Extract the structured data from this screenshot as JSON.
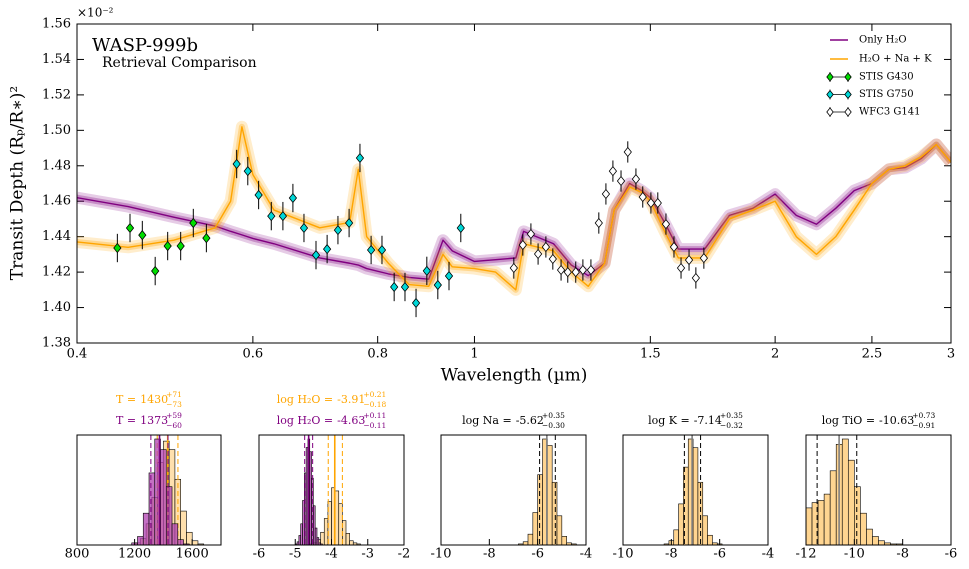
{
  "chart_data": [
    {
      "type": "line",
      "title": "WASP-999b",
      "subtitle": "Retrieval Comparison",
      "xlabel": "Wavelength (µm)",
      "ylabel": "Transit Depth (Rₚ/R∗)²",
      "y_multiplier": "×10⁻²",
      "xscale": "log",
      "xlim": [
        0.4,
        3
      ],
      "ylim": [
        1.38,
        1.56
      ],
      "xticks": [
        0.4,
        0.6,
        0.8,
        1,
        1.5,
        2,
        2.5,
        3
      ],
      "yticks": [
        1.38,
        {
          "value": 1.4,
          "label": "1.40"
        },
        1.42,
        1.44,
        1.46,
        1.48,
        {
          "value": 1.5,
          "label": "1.50"
        },
        1.52,
        1.54,
        1.56
      ],
      "legend": "upper right",
      "x": [
        0.4,
        0.45,
        0.5,
        0.55,
        0.57,
        0.585,
        0.6,
        0.63,
        0.7,
        0.75,
        0.765,
        0.78,
        0.82,
        0.86,
        0.9,
        0.93,
        0.95,
        1.0,
        1.05,
        1.1,
        1.12,
        1.2,
        1.25,
        1.3,
        1.35,
        1.38,
        1.43,
        1.47,
        1.5,
        1.55,
        1.6,
        1.7,
        1.8,
        1.9,
        2.0,
        2.1,
        2.2,
        2.3,
        2.4,
        2.5,
        2.6,
        2.7,
        2.8,
        2.9,
        3.0
      ],
      "series": [
        {
          "name": "Only H₂O",
          "color": "#800080",
          "values": [
            1.462,
            1.457,
            1.451,
            1.446,
            1.443,
            1.441,
            1.439,
            1.436,
            1.428,
            1.425,
            1.424,
            1.422,
            1.419,
            1.417,
            1.416,
            1.438,
            1.432,
            1.426,
            1.427,
            1.428,
            1.443,
            1.436,
            1.424,
            1.418,
            1.425,
            1.455,
            1.47,
            1.466,
            1.462,
            1.448,
            1.433,
            1.433,
            1.452,
            1.456,
            1.464,
            1.452,
            1.447,
            1.456,
            1.466,
            1.47,
            1.478,
            1.479,
            1.484,
            1.492,
            1.482
          ]
        },
        {
          "name": "H₂O + Na + K",
          "color": "#ffa500",
          "values": [
            1.437,
            1.434,
            1.438,
            1.445,
            1.46,
            1.502,
            1.475,
            1.455,
            1.445,
            1.448,
            1.478,
            1.44,
            1.425,
            1.413,
            1.412,
            1.43,
            1.423,
            1.422,
            1.42,
            1.41,
            1.436,
            1.432,
            1.42,
            1.412,
            1.425,
            1.455,
            1.468,
            1.465,
            1.46,
            1.443,
            1.428,
            1.428,
            1.45,
            1.455,
            1.46,
            1.44,
            1.43,
            1.44,
            1.455,
            1.47,
            1.478,
            1.48,
            1.485,
            1.492,
            1.482
          ]
        }
      ],
      "observations": [
        {
          "name": "STIS G430",
          "color": "#00dd00",
          "x": [
            0.439,
            0.452,
            0.465,
            0.479,
            0.493,
            0.508,
            0.523,
            0.539
          ],
          "values": [
            1.4336,
            1.4449,
            1.4409,
            1.4206,
            1.4347,
            1.4347,
            1.4477,
            1.4392
          ],
          "errors": [
            0.008,
            0.008,
            0.008,
            0.008,
            0.008,
            0.008,
            0.008,
            0.008
          ]
        },
        {
          "name": "STIS G750",
          "color": "#00d8d8",
          "x": [
            0.578,
            0.593,
            0.608,
            0.626,
            0.643,
            0.658,
            0.675,
            0.694,
            0.712,
            0.73,
            0.749,
            0.768,
            0.788,
            0.808,
            0.831,
            0.852,
            0.874,
            0.896,
            0.919,
            0.943,
            0.969
          ],
          "values": [
            1.481,
            1.477,
            1.4635,
            1.4516,
            1.4516,
            1.4618,
            1.4449,
            1.4296,
            1.433,
            1.4437,
            1.4477,
            1.4844,
            1.4325,
            1.4325,
            1.4116,
            1.4116,
            1.4026,
            1.4207,
            1.4127,
            1.4178,
            1.4449
          ],
          "errors": [
            0.008,
            0.008,
            0.008,
            0.008,
            0.008,
            0.008,
            0.008,
            0.008,
            0.008,
            0.008,
            0.008,
            0.008,
            0.008,
            0.008,
            0.008,
            0.008,
            0.008,
            0.008,
            0.008,
            0.008,
            0.008
          ]
        },
        {
          "name": "WFC3 G141",
          "color": "#ffffff",
          "x": [
            1.095,
            1.118,
            1.139,
            1.158,
            1.179,
            1.198,
            1.221,
            1.24,
            1.263,
            1.284,
            1.308,
            1.332,
            1.354,
            1.376,
            1.402,
            1.424,
            1.451,
            1.474,
            1.502,
            1.526,
            1.555,
            1.584,
            1.61,
            1.64,
            1.666,
            1.697
          ],
          "values": [
            1.4223,
            1.4353,
            1.4415,
            1.4302,
            1.4342,
            1.4274,
            1.4212,
            1.42,
            1.42,
            1.4212,
            1.4212,
            1.4477,
            1.4641,
            1.477,
            1.4714,
            1.4878,
            1.4725,
            1.4624,
            1.459,
            1.459,
            1.4471,
            1.4342,
            1.4223,
            1.4268,
            1.4167,
            1.4279
          ],
          "errors": [
            0.006,
            0.006,
            0.006,
            0.006,
            0.006,
            0.006,
            0.006,
            0.006,
            0.006,
            0.006,
            0.006,
            0.006,
            0.006,
            0.006,
            0.006,
            0.006,
            0.006,
            0.006,
            0.006,
            0.006,
            0.006,
            0.006,
            0.006,
            0.006,
            0.006,
            0.006
          ]
        }
      ]
    },
    {
      "type": "histogram",
      "xlim": [
        800,
        1800
      ],
      "xticks": [
        800,
        1200,
        1600
      ],
      "series": [
        {
          "label": "T =",
          "color": "#ffa500",
          "median_color": "#ffa500",
          "fill": "#ffd591",
          "median": 1430,
          "upper_error": 71,
          "upper_error_label": "+71",
          "lower_error": -73,
          "lower_error_label": "−73",
          "bins": [
            1200,
            1240,
            1280,
            1320,
            1360,
            1400,
            1440,
            1480,
            1520,
            1560,
            1600,
            1640,
            1680
          ],
          "counts": [
            2,
            6,
            20,
            45,
            78,
            98,
            90,
            62,
            32,
            12,
            4,
            1
          ]
        },
        {
          "label": "T =",
          "color": "#800080",
          "median_color": "#800080",
          "fill": "#b040b0",
          "median": 1373,
          "upper_error": 59,
          "upper_error_label": "+59",
          "lower_error": -60,
          "lower_error_label": "−60",
          "bins": [
            1180,
            1220,
            1260,
            1300,
            1340,
            1380,
            1420,
            1460,
            1500,
            1540,
            1580
          ],
          "counts": [
            2,
            8,
            30,
            68,
            100,
            90,
            55,
            20,
            5,
            1
          ]
        }
      ]
    },
    {
      "type": "histogram",
      "xlim": [
        -6,
        -2
      ],
      "xticks": [
        -6,
        -5,
        -4,
        -3,
        -2
      ],
      "series": [
        {
          "label": "log H₂O =",
          "color": "#ffa500",
          "median_color": "#ffa500",
          "fill": "#ffd591",
          "median": -3.91,
          "upper_error": 0.21,
          "upper_error_label": "+0.21",
          "lower_error": -0.18,
          "lower_error_label": "−0.18",
          "bins": [
            -4.6,
            -4.5,
            -4.4,
            -4.3,
            -4.2,
            -4.1,
            -4.0,
            -3.9,
            -3.8,
            -3.7,
            -3.6,
            -3.5,
            -3.4,
            -3.3,
            -3.2
          ],
          "counts": [
            1,
            2,
            5,
            12,
            25,
            41,
            54,
            51,
            39,
            23,
            11,
            4,
            2,
            1
          ]
        },
        {
          "label": "log H₂O =",
          "color": "#800080",
          "median_color": "#800080",
          "fill": "#b040b0",
          "median": -4.63,
          "upper_error": 0.11,
          "upper_error_label": "+0.11",
          "lower_error": -0.11,
          "lower_error_label": "−0.11",
          "bins": [
            -5.0,
            -4.95,
            -4.9,
            -4.85,
            -4.8,
            -4.75,
            -4.7,
            -4.65,
            -4.6,
            -4.55,
            -4.5,
            -4.45,
            -4.4,
            -4.35,
            -4.3,
            -4.25
          ],
          "counts": [
            1,
            3,
            9,
            20,
            42,
            68,
            92,
            100,
            88,
            63,
            37,
            16,
            7,
            2,
            1
          ]
        }
      ]
    },
    {
      "type": "histogram",
      "xlim": [
        -10,
        -4
      ],
      "xticks": [
        -10,
        -8,
        -6,
        -4
      ],
      "series": [
        {
          "label": "log Na =",
          "color": "#000000",
          "median_color": "#808080",
          "fill": "#ffd591",
          "median": -5.62,
          "upper_error": 0.35,
          "upper_error_label": "+0.35",
          "lower_error": -0.3,
          "lower_error_label": "−0.30",
          "bins": [
            -6.8,
            -6.6,
            -6.4,
            -6.2,
            -6.0,
            -5.8,
            -5.6,
            -5.4,
            -5.2,
            -5.0,
            -4.8,
            -4.6,
            -4.4
          ],
          "counts": [
            1,
            3,
            10,
            30,
            65,
            98,
            92,
            58,
            27,
            8,
            2,
            1
          ]
        }
      ]
    },
    {
      "type": "histogram",
      "xlim": [
        -10,
        -4
      ],
      "xticks": [
        -10,
        -8,
        -6,
        -4
      ],
      "series": [
        {
          "label": "log K =",
          "color": "#000000",
          "median_color": "#808080",
          "fill": "#ffd591",
          "median": -7.14,
          "upper_error": 0.35,
          "upper_error_label": "+0.35",
          "lower_error": -0.32,
          "lower_error_label": "−0.32",
          "bins": [
            -8.3,
            -8.1,
            -7.9,
            -7.7,
            -7.5,
            -7.3,
            -7.1,
            -6.9,
            -6.7,
            -6.5,
            -6.3,
            -6.1,
            -5.9
          ],
          "counts": [
            1,
            4,
            14,
            38,
            72,
            98,
            90,
            58,
            27,
            9,
            2,
            1
          ]
        }
      ]
    },
    {
      "type": "histogram",
      "xlim": [
        -12,
        -6
      ],
      "xticks": [
        -12,
        -10,
        -8,
        -6
      ],
      "series": [
        {
          "label": "log TiO =",
          "color": "#000000",
          "median_color": "#808080",
          "fill": "#ffd591",
          "median": -10.63,
          "upper_error": 0.73,
          "upper_error_label": "+0.73",
          "lower_error": -0.91,
          "lower_error_label": "−0.91",
          "bins": [
            -12.0,
            -11.75,
            -11.5,
            -11.25,
            -11.0,
            -10.75,
            -10.5,
            -10.25,
            -10.0,
            -9.75,
            -9.5,
            -9.25,
            -9.0,
            -8.75,
            -8.5,
            -8.25,
            -8.0
          ],
          "counts": [
            35,
            40,
            42,
            48,
            70,
            95,
            100,
            80,
            55,
            30,
            15,
            8,
            4,
            2,
            1,
            1
          ]
        }
      ]
    }
  ]
}
